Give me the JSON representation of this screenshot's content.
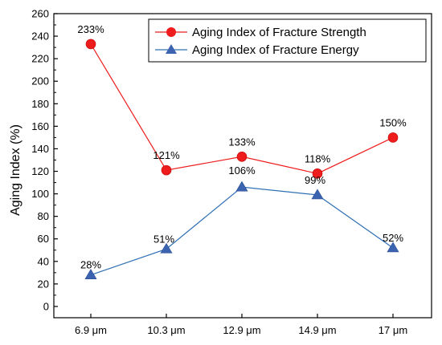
{
  "chart_data": {
    "type": "line",
    "categories": [
      "6.9 μm",
      "10.3 μm",
      "12.9 μm",
      "14.9 μm",
      "17 μm"
    ],
    "series": [
      {
        "name": "Aging Index of Fracture Strength",
        "values": [
          233,
          121,
          133,
          118,
          150
        ],
        "labels": [
          "233%",
          "121%",
          "133%",
          "118%",
          "150%"
        ],
        "color": "#ee1c1c",
        "marker": "circle"
      },
      {
        "name": "Aging Index of Fracture Energy",
        "values": [
          28,
          51,
          106,
          99,
          52
        ],
        "labels": [
          "28%",
          "51%",
          "106%",
          "99%",
          "52%"
        ],
        "color": "#2e6fb5",
        "marker": "triangle"
      }
    ],
    "ylabel": "Aging Index (%)",
    "xlabel": "",
    "ylim": [
      -10,
      260
    ],
    "yticks": [
      0,
      20,
      40,
      60,
      80,
      100,
      120,
      140,
      160,
      180,
      200,
      220,
      240,
      260
    ],
    "legend_position": "top-right",
    "grid": false
  }
}
